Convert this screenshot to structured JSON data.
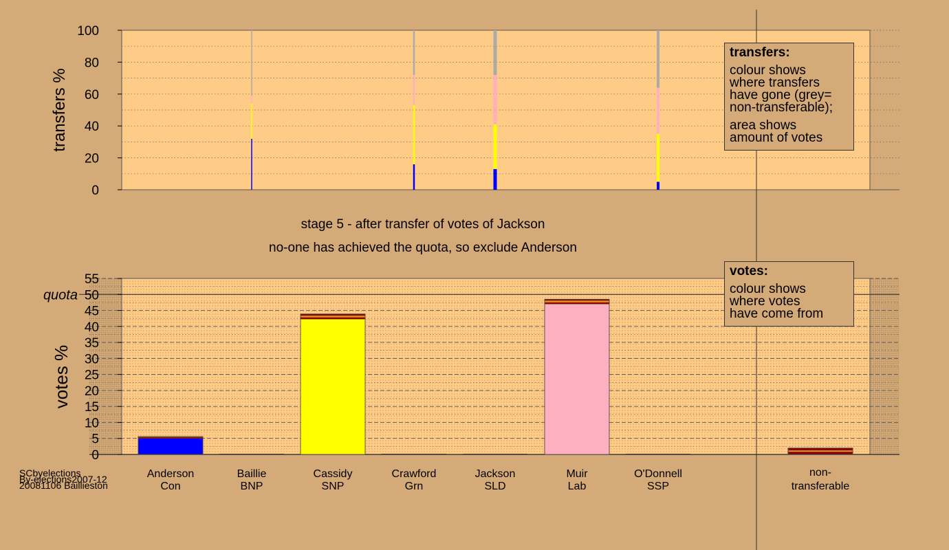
{
  "stage": {
    "line1": "stage 5 - after transfer of votes of Jackson",
    "line2": "no-one has achieved the quota, so exclude Anderson"
  },
  "footer": {
    "line1": "SCbyelections",
    "line2": "By-elections2007-12",
    "line3": "20081106 Baillieston"
  },
  "legend_transfers": {
    "title": "transfers:",
    "lines": [
      "colour shows",
      "where transfers",
      "have gone (grey=",
      "non-transferable);"
    ],
    "lines2": [
      "area shows",
      "amount of votes"
    ]
  },
  "legend_votes": {
    "title": "votes:",
    "lines": [
      "colour shows",
      "where votes",
      "have come from"
    ]
  },
  "colors": {
    "background": "#d4aa78",
    "plot_bg": "#ffcc88",
    "Con": "#0000ff",
    "SNP": "#ffff00",
    "Lab": "#ffb0c0",
    "nontransferable": "#aaaaaa",
    "darkred": "#8b0000",
    "orange": "#ff8c00"
  },
  "chart_data": [
    {
      "type": "bar",
      "ylabel": "transfers %",
      "ylim": [
        0,
        100
      ],
      "yticks": [
        0,
        20,
        40,
        60,
        80,
        100
      ],
      "categories": [
        "Anderson",
        "Baillie",
        "Cassidy",
        "Crawford",
        "Jackson",
        "Muir",
        "O'Donnell",
        "non-transferable"
      ],
      "bars": [
        {
          "category": "Baillie",
          "segments": [
            {
              "party": "Con",
              "value": 32
            },
            {
              "party": "SNP",
              "value": 22
            },
            {
              "party": "Lab",
              "value": 5
            },
            {
              "party": "nontransferable",
              "value": 41
            }
          ]
        },
        {
          "category": "Crawford",
          "segments": [
            {
              "party": "Con",
              "value": 16
            },
            {
              "party": "SNP",
              "value": 37
            },
            {
              "party": "Lab",
              "value": 19
            },
            {
              "party": "nontransferable",
              "value": 28
            }
          ]
        },
        {
          "category": "Jackson",
          "segments": [
            {
              "party": "Con",
              "value": 13
            },
            {
              "party": "SNP",
              "value": 28
            },
            {
              "party": "Lab",
              "value": 31
            },
            {
              "party": "nontransferable",
              "value": 28
            }
          ]
        },
        {
          "category": "O'Donnell",
          "segments": [
            {
              "party": "Con",
              "value": 5
            },
            {
              "party": "SNP",
              "value": 30
            },
            {
              "party": "Lab",
              "value": 29
            },
            {
              "party": "nontransferable",
              "value": 36
            }
          ]
        }
      ]
    },
    {
      "type": "bar",
      "ylabel": "votes %",
      "ylim": [
        0,
        55
      ],
      "yticks": [
        0,
        5,
        10,
        15,
        20,
        25,
        30,
        35,
        40,
        45,
        50,
        55
      ],
      "quota": 50,
      "quota_label": "quota",
      "categories": [
        {
          "name": "Anderson",
          "party": "Con"
        },
        {
          "name": "Baillie",
          "party": "BNP"
        },
        {
          "name": "Cassidy",
          "party": "SNP"
        },
        {
          "name": "Crawford",
          "party": "Grn"
        },
        {
          "name": "Jackson",
          "party": "SLD"
        },
        {
          "name": "Muir",
          "party": "Lab"
        },
        {
          "name": "O'Donnell",
          "party": "SSP"
        }
      ],
      "nontransferable_label": [
        "non-",
        "transferable"
      ],
      "bars": [
        {
          "category": "Anderson",
          "segments": [
            {
              "color": "Con",
              "value": 5
            },
            {
              "color": "darkred",
              "value": 0.4
            },
            {
              "color": "orange",
              "value": 0.2
            }
          ]
        },
        {
          "category": "Baillie",
          "segments": []
        },
        {
          "category": "Cassidy",
          "segments": [
            {
              "color": "SNP",
              "value": 42.3
            },
            {
              "color": "darkred",
              "value": 0.5
            },
            {
              "color": "orange",
              "value": 0.6
            },
            {
              "color": "darkred",
              "value": 0.5
            }
          ]
        },
        {
          "category": "Crawford",
          "segments": []
        },
        {
          "category": "Jackson",
          "segments": []
        },
        {
          "category": "Muir",
          "segments": [
            {
              "color": "Lab",
              "value": 47
            },
            {
              "color": "darkred",
              "value": 0.5
            },
            {
              "color": "orange",
              "value": 0.6
            },
            {
              "color": "darkred",
              "value": 0.4
            }
          ]
        },
        {
          "category": "O'Donnell",
          "segments": []
        },
        {
          "category": "non-transferable",
          "segments": [
            {
              "color": "darkred",
              "value": 0.8
            },
            {
              "color": "orange",
              "value": 0.5
            },
            {
              "color": "darkred",
              "value": 0.7
            }
          ]
        }
      ]
    }
  ]
}
